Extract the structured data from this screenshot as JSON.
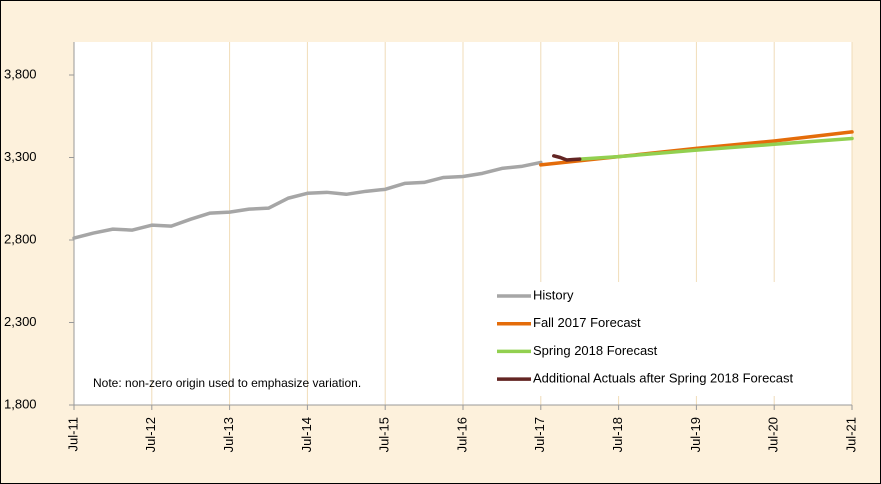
{
  "chart_data": {
    "type": "line",
    "annotation": "Note: non-zero origin used to emphasize variation.",
    "xlim": [
      0,
      120
    ],
    "xticks": [
      {
        "value": 0,
        "label": "Jul-11"
      },
      {
        "value": 12,
        "label": "Jul-12"
      },
      {
        "value": 24,
        "label": "Jul-13"
      },
      {
        "value": 36,
        "label": "Jul-14"
      },
      {
        "value": 48,
        "label": "Jul-15"
      },
      {
        "value": 60,
        "label": "Jul-16"
      },
      {
        "value": 72,
        "label": "Jul-17"
      },
      {
        "value": 84,
        "label": "Jul-18"
      },
      {
        "value": 96,
        "label": "Jul-19"
      },
      {
        "value": 108,
        "label": "Jul-20"
      },
      {
        "value": 120,
        "label": "Jul-21"
      }
    ],
    "ylim": [
      1800,
      4000
    ],
    "yticks": [
      {
        "value": 1800,
        "label": "1,800"
      },
      {
        "value": 2300,
        "label": "2,300"
      },
      {
        "value": 2800,
        "label": "2,800"
      },
      {
        "value": 3300,
        "label": "3,300"
      },
      {
        "value": 3800,
        "label": "3,800"
      }
    ],
    "grid": true,
    "legend": "lower right",
    "series": [
      {
        "name": "History",
        "color": "#a6a6a6",
        "x": [
          0,
          3,
          6,
          9,
          12,
          15,
          18,
          21,
          24,
          27,
          30,
          33,
          36,
          39,
          42,
          45,
          48,
          51,
          54,
          57,
          60,
          63,
          66,
          69,
          72
        ],
        "values": [
          2812,
          2842,
          2866,
          2860,
          2890,
          2884,
          2926,
          2963,
          2969,
          2987,
          2993,
          3053,
          3083,
          3089,
          3077,
          3095,
          3107,
          3143,
          3149,
          3179,
          3185,
          3204,
          3234,
          3246,
          3270
        ]
      },
      {
        "name": "Fall 2017 Forecast",
        "color": "#e46c0a",
        "x": [
          72,
          84,
          96,
          108,
          120
        ],
        "values": [
          3255,
          3305,
          3355,
          3400,
          3455
        ]
      },
      {
        "name": "Spring 2018 Forecast",
        "color": "#92d050",
        "x": [
          78,
          84,
          96,
          108,
          120
        ],
        "values": [
          3290,
          3305,
          3345,
          3380,
          3415
        ]
      },
      {
        "name": "Additional Actuals after Spring 2018 Forecast",
        "color": "#632523",
        "x": [
          74,
          75,
          76,
          77,
          78
        ],
        "values": [
          3310,
          3300,
          3285,
          3288,
          3290
        ]
      }
    ]
  }
}
